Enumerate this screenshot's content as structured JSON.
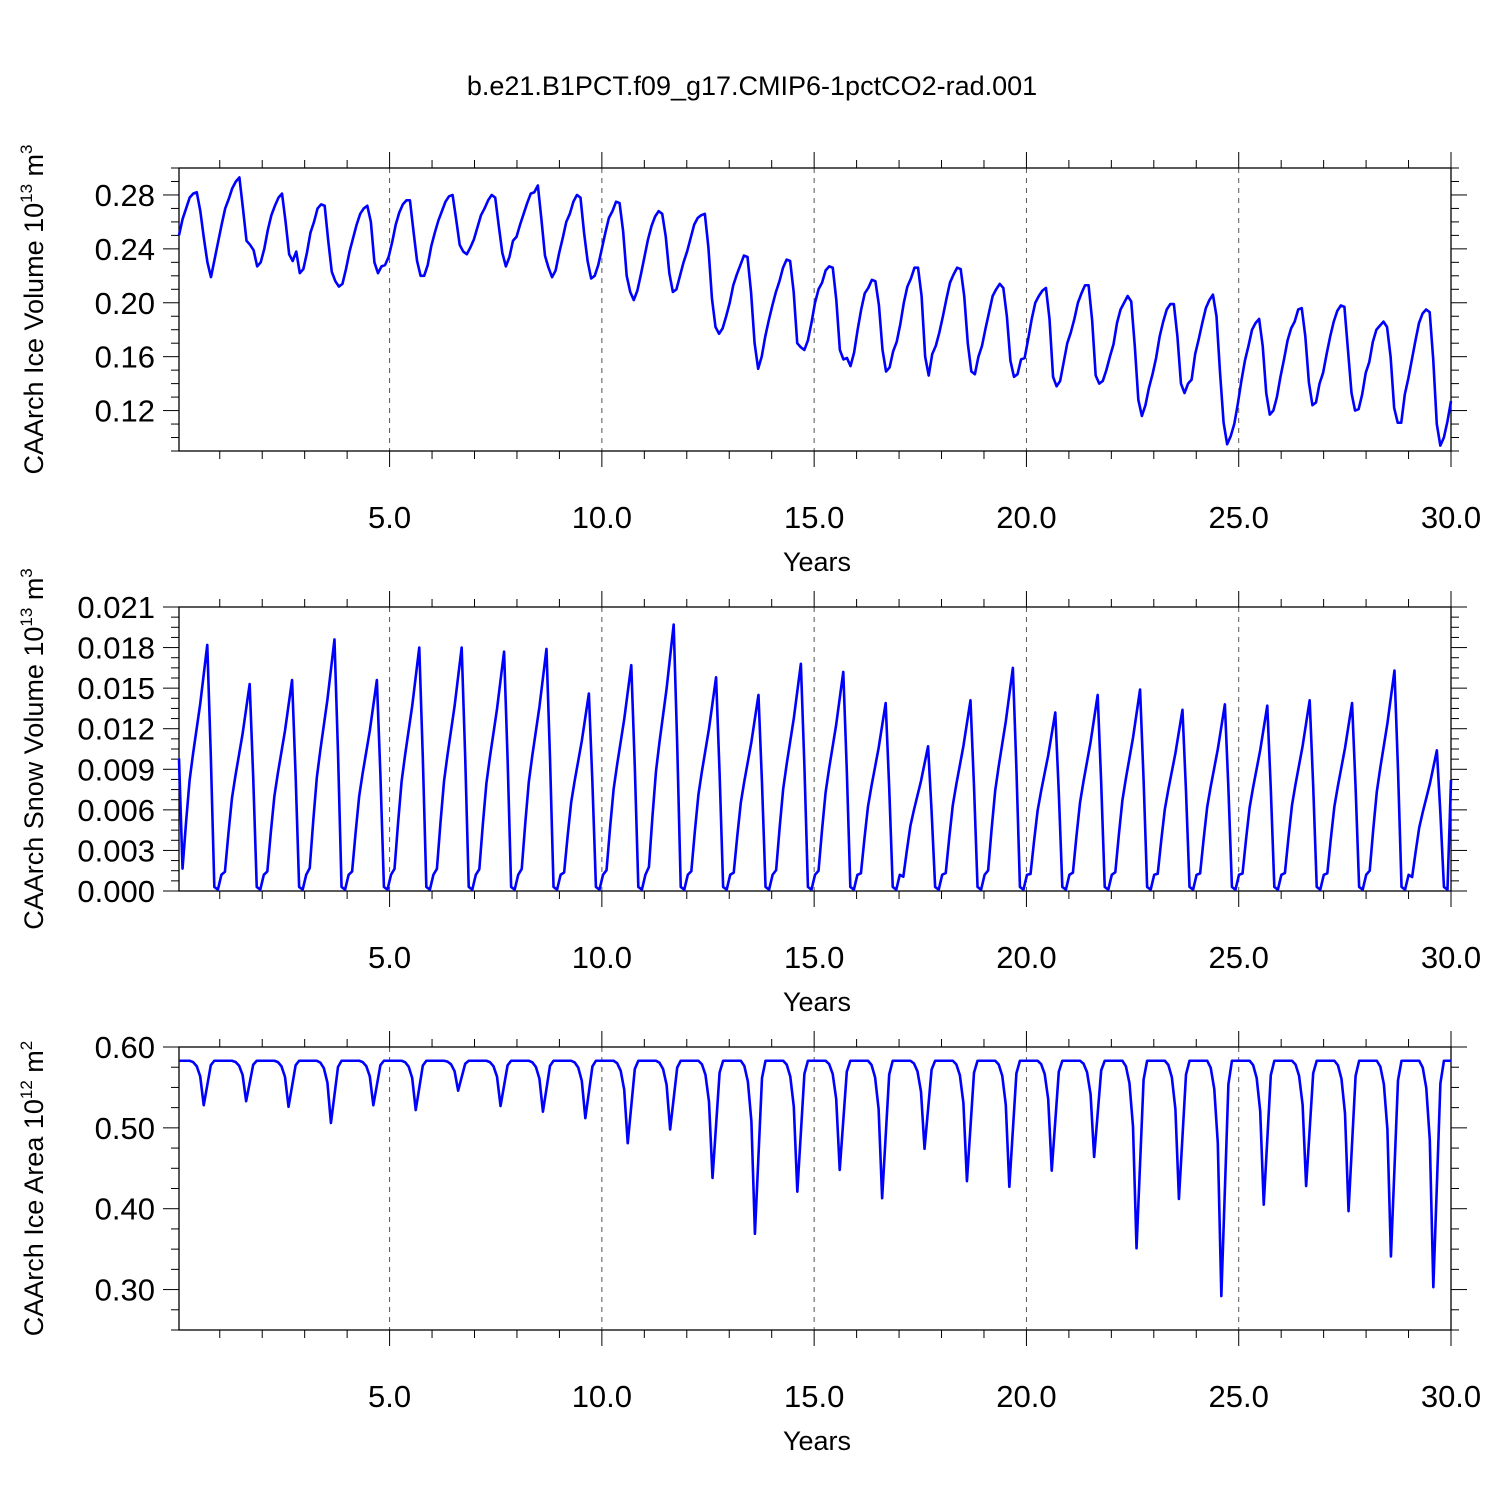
{
  "title": "b.e21.B1PCT.f09_g17.CMIP6-1pctCO2-rad.001",
  "colors": {
    "series": "#0000ff"
  },
  "chart_data": [
    {
      "type": "line",
      "ylabel_parts": {
        "base": "CAArch Ice Volume 10",
        "exp": "13",
        "unit": " m",
        "unit_exp": "3"
      },
      "xlabel": "Years",
      "xlim": [
        0.04,
        30.0
      ],
      "ylim": [
        0.09,
        0.3
      ],
      "xticks": [
        5,
        10,
        15,
        20,
        25,
        30
      ],
      "xtick_labels": [
        "5.0",
        "10.0",
        "15.0",
        "20.0",
        "25.0",
        "30.0"
      ],
      "yticks": [
        0.12,
        0.16,
        0.2,
        0.24,
        0.28
      ],
      "ytick_labels": [
        "0.12",
        "0.16",
        "0.20",
        "0.24",
        "0.28"
      ],
      "grid": "vertical-dashed",
      "series": [
        {
          "x_start": 0.04,
          "x_step": 0.0833333,
          "values": [
            0.25,
            0.262,
            0.27,
            0.278,
            0.281,
            0.282,
            0.268,
            0.248,
            0.23,
            0.219,
            0.232,
            0.245,
            0.258,
            0.27,
            0.277,
            0.285,
            0.29,
            0.293,
            0.27,
            0.246,
            0.243,
            0.239,
            0.227,
            0.23,
            0.24,
            0.254,
            0.265,
            0.272,
            0.278,
            0.281,
            0.26,
            0.236,
            0.231,
            0.238,
            0.222,
            0.225,
            0.237,
            0.252,
            0.26,
            0.27,
            0.273,
            0.272,
            0.246,
            0.223,
            0.216,
            0.212,
            0.214,
            0.225,
            0.238,
            0.248,
            0.258,
            0.266,
            0.27,
            0.272,
            0.26,
            0.23,
            0.222,
            0.227,
            0.228,
            0.234,
            0.245,
            0.258,
            0.267,
            0.273,
            0.276,
            0.276,
            0.253,
            0.231,
            0.22,
            0.22,
            0.228,
            0.242,
            0.252,
            0.261,
            0.268,
            0.275,
            0.279,
            0.28,
            0.262,
            0.243,
            0.238,
            0.236,
            0.241,
            0.247,
            0.256,
            0.265,
            0.27,
            0.276,
            0.28,
            0.278,
            0.257,
            0.237,
            0.227,
            0.234,
            0.246,
            0.249,
            0.258,
            0.266,
            0.274,
            0.281,
            0.282,
            0.287,
            0.262,
            0.235,
            0.226,
            0.219,
            0.224,
            0.237,
            0.248,
            0.26,
            0.266,
            0.275,
            0.28,
            0.278,
            0.252,
            0.231,
            0.218,
            0.22,
            0.228,
            0.24,
            0.252,
            0.263,
            0.268,
            0.275,
            0.274,
            0.253,
            0.22,
            0.208,
            0.202,
            0.209,
            0.221,
            0.234,
            0.247,
            0.257,
            0.264,
            0.268,
            0.266,
            0.249,
            0.222,
            0.208,
            0.21,
            0.22,
            0.23,
            0.238,
            0.248,
            0.258,
            0.263,
            0.265,
            0.266,
            0.241,
            0.203,
            0.182,
            0.177,
            0.181,
            0.19,
            0.2,
            0.213,
            0.221,
            0.228,
            0.235,
            0.234,
            0.208,
            0.17,
            0.151,
            0.16,
            0.175,
            0.187,
            0.198,
            0.208,
            0.216,
            0.226,
            0.232,
            0.231,
            0.208,
            0.17,
            0.167,
            0.165,
            0.172,
            0.185,
            0.2,
            0.21,
            0.215,
            0.224,
            0.227,
            0.226,
            0.202,
            0.165,
            0.158,
            0.159,
            0.153,
            0.163,
            0.18,
            0.195,
            0.207,
            0.211,
            0.217,
            0.216,
            0.198,
            0.165,
            0.149,
            0.152,
            0.164,
            0.171,
            0.184,
            0.2,
            0.212,
            0.218,
            0.226,
            0.226,
            0.205,
            0.16,
            0.146,
            0.162,
            0.168,
            0.178,
            0.19,
            0.203,
            0.215,
            0.221,
            0.226,
            0.225,
            0.205,
            0.17,
            0.149,
            0.147,
            0.16,
            0.168,
            0.181,
            0.193,
            0.205,
            0.21,
            0.214,
            0.211,
            0.19,
            0.157,
            0.145,
            0.147,
            0.158,
            0.159,
            0.173,
            0.188,
            0.2,
            0.205,
            0.209,
            0.211,
            0.188,
            0.145,
            0.138,
            0.142,
            0.156,
            0.17,
            0.178,
            0.188,
            0.2,
            0.207,
            0.213,
            0.213,
            0.187,
            0.146,
            0.14,
            0.142,
            0.15,
            0.16,
            0.169,
            0.185,
            0.195,
            0.2,
            0.205,
            0.201,
            0.168,
            0.128,
            0.116,
            0.124,
            0.137,
            0.147,
            0.159,
            0.175,
            0.186,
            0.195,
            0.199,
            0.199,
            0.175,
            0.14,
            0.133,
            0.14,
            0.143,
            0.162,
            0.173,
            0.185,
            0.196,
            0.202,
            0.206,
            0.19,
            0.148,
            0.111,
            0.095,
            0.101,
            0.11,
            0.125,
            0.142,
            0.157,
            0.168,
            0.18,
            0.185,
            0.188,
            0.168,
            0.133,
            0.117,
            0.12,
            0.13,
            0.145,
            0.158,
            0.172,
            0.181,
            0.186,
            0.195,
            0.196,
            0.175,
            0.141,
            0.124,
            0.126,
            0.14,
            0.148,
            0.162,
            0.175,
            0.186,
            0.194,
            0.198,
            0.197,
            0.165,
            0.133,
            0.12,
            0.121,
            0.132,
            0.148,
            0.156,
            0.171,
            0.18,
            0.183,
            0.186,
            0.182,
            0.16,
            0.122,
            0.111,
            0.111,
            0.132,
            0.144,
            0.158,
            0.172,
            0.185,
            0.192,
            0.195,
            0.193,
            0.158,
            0.11,
            0.094,
            0.1,
            0.112,
            0.127
          ]
        }
      ]
    },
    {
      "type": "line",
      "ylabel_parts": {
        "base": "CAArch Snow Volume 10",
        "exp": "13",
        "unit": " m",
        "unit_exp": "3"
      },
      "xlabel": "Years",
      "xlim": [
        0.04,
        30.0
      ],
      "ylim": [
        0.0,
        0.021
      ],
      "xticks": [
        5,
        10,
        15,
        20,
        25,
        30
      ],
      "xtick_labels": [
        "5.0",
        "10.0",
        "15.0",
        "20.0",
        "25.0",
        "30.0"
      ],
      "yticks": [
        0.0,
        0.003,
        0.006,
        0.009,
        0.012,
        0.015,
        0.018,
        0.021
      ],
      "ytick_labels": [
        "0.000",
        "0.003",
        "0.006",
        "0.009",
        "0.012",
        "0.015",
        "0.018",
        "0.021"
      ],
      "grid": "vertical-dashed",
      "peaks": [
        0.0182,
        0.0153,
        0.0156,
        0.0186,
        0.0156,
        0.018,
        0.018,
        0.0177,
        0.0179,
        0.0146,
        0.0167,
        0.0197,
        0.0158,
        0.0145,
        0.0168,
        0.0162,
        0.0139,
        0.0107,
        0.0141,
        0.0165,
        0.0132,
        0.0145,
        0.0149,
        0.0134,
        0.0138,
        0.0137,
        0.0141,
        0.0139,
        0.0163,
        0.0104
      ],
      "series": [
        {
          "x_start": 0.04,
          "x_step": 0.0833333,
          "first_value": 0.0098,
          "last_value": 0.0082
        }
      ]
    },
    {
      "type": "line",
      "ylabel_parts": {
        "base": "CAArch Ice Area 10",
        "exp": "12",
        "unit": " m",
        "unit_exp": "2"
      },
      "xlabel": "Years",
      "xlim": [
        0.04,
        30.0
      ],
      "ylim": [
        0.25,
        0.6
      ],
      "xticks": [
        5,
        10,
        15,
        20,
        25,
        30
      ],
      "xtick_labels": [
        "5.0",
        "10.0",
        "15.0",
        "20.0",
        "25.0",
        "30.0"
      ],
      "yticks": [
        0.3,
        0.4,
        0.5,
        0.6
      ],
      "ytick_labels": [
        "0.30",
        "0.40",
        "0.50",
        "0.60"
      ],
      "grid": "vertical-dashed",
      "plateau": 0.583,
      "minima": [
        0.528,
        0.533,
        0.526,
        0.506,
        0.528,
        0.522,
        0.546,
        0.527,
        0.52,
        0.512,
        0.481,
        0.498,
        0.438,
        0.369,
        0.421,
        0.448,
        0.413,
        0.474,
        0.434,
        0.427,
        0.447,
        0.464,
        0.351,
        0.412,
        0.292,
        0.405,
        0.428,
        0.397,
        0.341,
        0.303
      ],
      "series": [
        {
          "x_start": 0.04,
          "x_step": 0.0833333
        }
      ]
    }
  ]
}
